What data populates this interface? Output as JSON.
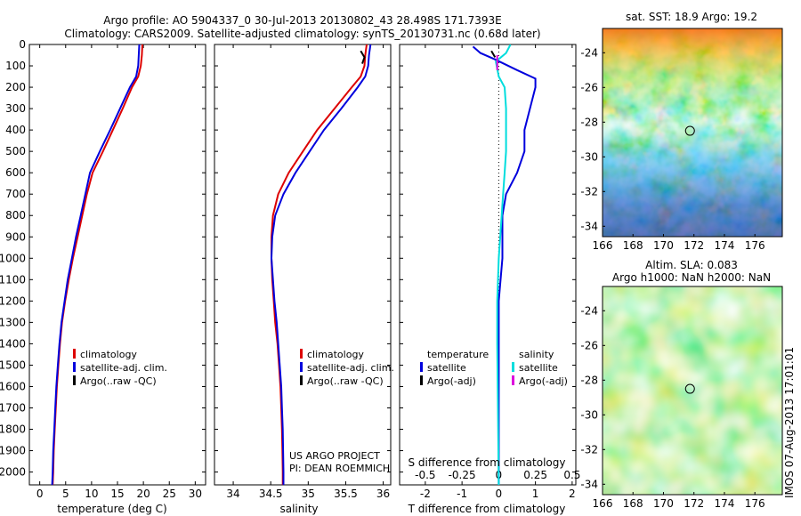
{
  "header": {
    "line1": "Argo profile: AO 5904337_0 30-Jul-2013 20130802_43 28.498S 171.7393E",
    "line2": "Climatology: CARS2009. Satellite-adjusted climatology: synTS_20130731.nc (0.68d later)"
  },
  "credits": {
    "project": "US ARGO PROJECT",
    "pi": "PI: DEAN ROEMMICH",
    "imos": "IMOS 07-Aug-2013 17:01:01"
  },
  "chart_data": [
    {
      "type": "line",
      "name": "temperature-profile",
      "xlabel": "temperature (deg C)",
      "ylabel": "",
      "xlim": [
        -2,
        32
      ],
      "ylim": [
        2060,
        0
      ],
      "xticks": [
        0,
        5,
        10,
        15,
        20,
        25,
        30
      ],
      "yticks": [
        0,
        100,
        200,
        300,
        400,
        500,
        600,
        700,
        800,
        900,
        1000,
        1100,
        1200,
        1300,
        1400,
        1500,
        1600,
        1700,
        1800,
        1900,
        2000
      ],
      "legend": [
        "climatology",
        "satellite-adj. clim.",
        "Argo(..raw -QC)"
      ],
      "series": [
        {
          "name": "climatology",
          "color": "#dd0000",
          "points": [
            [
              19.8,
              0
            ],
            [
              19.7,
              50
            ],
            [
              19.5,
              100
            ],
            [
              19.0,
              150
            ],
            [
              17.8,
              200
            ],
            [
              16.0,
              300
            ],
            [
              14.1,
              400
            ],
            [
              12.2,
              500
            ],
            [
              10.2,
              600
            ],
            [
              9.1,
              700
            ],
            [
              8.2,
              800
            ],
            [
              7.3,
              900
            ],
            [
              6.4,
              1000
            ],
            [
              5.6,
              1100
            ],
            [
              4.9,
              1200
            ],
            [
              4.3,
              1300
            ],
            [
              3.9,
              1400
            ],
            [
              3.6,
              1500
            ],
            [
              3.3,
              1600
            ],
            [
              3.1,
              1700
            ],
            [
              2.9,
              1800
            ],
            [
              2.7,
              1900
            ],
            [
              2.6,
              2000
            ],
            [
              2.5,
              2060
            ]
          ]
        },
        {
          "name": "satellite-adj. clim.",
          "color": "#0000dd",
          "points": [
            [
              19.2,
              0
            ],
            [
              19.1,
              50
            ],
            [
              19.0,
              100
            ],
            [
              18.6,
              150
            ],
            [
              17.4,
              200
            ],
            [
              15.5,
              300
            ],
            [
              13.6,
              400
            ],
            [
              11.6,
              500
            ],
            [
              9.7,
              600
            ],
            [
              8.8,
              700
            ],
            [
              7.9,
              800
            ],
            [
              7.0,
              900
            ],
            [
              6.2,
              1000
            ],
            [
              5.4,
              1100
            ],
            [
              4.8,
              1200
            ],
            [
              4.2,
              1300
            ],
            [
              3.8,
              1400
            ],
            [
              3.5,
              1500
            ],
            [
              3.2,
              1600
            ],
            [
              3.0,
              1700
            ],
            [
              2.8,
              1800
            ],
            [
              2.6,
              1900
            ],
            [
              2.5,
              2000
            ],
            [
              2.4,
              2060
            ]
          ]
        }
      ]
    },
    {
      "type": "line",
      "name": "salinity-profile",
      "xlabel": "salinity",
      "xlim": [
        33.75,
        36.1
      ],
      "ylim": [
        2060,
        0
      ],
      "xticks": [
        34,
        34.5,
        35,
        35.5,
        36
      ],
      "legend": [
        "climatology",
        "satellite-adj. clim.",
        "Argo(..raw -QC)"
      ],
      "series": [
        {
          "name": "climatology",
          "color": "#dd0000",
          "points": [
            [
              35.78,
              0
            ],
            [
              35.76,
              50
            ],
            [
              35.75,
              100
            ],
            [
              35.7,
              150
            ],
            [
              35.58,
              200
            ],
            [
              35.35,
              300
            ],
            [
              35.12,
              400
            ],
            [
              34.93,
              500
            ],
            [
              34.74,
              600
            ],
            [
              34.6,
              700
            ],
            [
              34.53,
              800
            ],
            [
              34.51,
              900
            ],
            [
              34.51,
              1000
            ],
            [
              34.52,
              1100
            ],
            [
              34.54,
              1200
            ],
            [
              34.56,
              1300
            ],
            [
              34.59,
              1400
            ],
            [
              34.61,
              1500
            ],
            [
              34.63,
              1600
            ],
            [
              34.64,
              1700
            ],
            [
              34.65,
              1800
            ],
            [
              34.655,
              1900
            ],
            [
              34.66,
              2000
            ],
            [
              34.66,
              2060
            ]
          ]
        },
        {
          "name": "satellite-adj. clim.",
          "color": "#0000dd",
          "points": [
            [
              35.83,
              0
            ],
            [
              35.81,
              50
            ],
            [
              35.8,
              100
            ],
            [
              35.76,
              150
            ],
            [
              35.66,
              200
            ],
            [
              35.44,
              300
            ],
            [
              35.21,
              400
            ],
            [
              35.02,
              500
            ],
            [
              34.83,
              600
            ],
            [
              34.67,
              700
            ],
            [
              34.56,
              800
            ],
            [
              34.52,
              900
            ],
            [
              34.51,
              1000
            ],
            [
              34.53,
              1100
            ],
            [
              34.55,
              1200
            ],
            [
              34.58,
              1300
            ],
            [
              34.6,
              1400
            ],
            [
              34.62,
              1500
            ],
            [
              34.64,
              1600
            ],
            [
              34.65,
              1700
            ],
            [
              34.66,
              1800
            ],
            [
              34.665,
              1900
            ],
            [
              34.67,
              2000
            ],
            [
              34.67,
              2060
            ]
          ]
        },
        {
          "name": "Argo(..raw -QC)",
          "color": "#000000",
          "points": [
            [
              35.7,
              30
            ],
            [
              35.75,
              60
            ],
            [
              35.72,
              90
            ]
          ]
        }
      ]
    },
    {
      "type": "line",
      "name": "difference-profile",
      "xlabel": "T difference from climatology",
      "xlabel2": "S difference from climatology",
      "xlim": [
        -2.7,
        2.1
      ],
      "xlim2": [
        -0.675,
        0.525
      ],
      "ylim": [
        2060,
        0
      ],
      "xticks": [
        -2,
        -1,
        0,
        1,
        2
      ],
      "xticklabels": [
        "-2",
        "-1",
        "0",
        "1",
        "2"
      ],
      "xticks2": [
        -0.5,
        -0.25,
        0,
        0.25,
        0.5
      ],
      "xticklabels2": [
        "-0.5",
        "-0.25",
        "0",
        "0.25",
        "0.5"
      ],
      "legend_titles": [
        "temperature",
        "salinity"
      ],
      "legend_left": [
        "satellite",
        "Argo(-adj)"
      ],
      "legend_right": [
        "satellite",
        "Argo(-adj)"
      ],
      "series": [
        {
          "name": "temperature satellite",
          "color": "#0000dd",
          "axis": "T",
          "points": [
            [
              -0.7,
              10
            ],
            [
              -0.5,
              40
            ],
            [
              -0.1,
              70
            ],
            [
              0.5,
              120
            ],
            [
              1.0,
              160
            ],
            [
              1.0,
              200
            ],
            [
              0.7,
              400
            ],
            [
              0.7,
              500
            ],
            [
              0.5,
              600
            ],
            [
              0.2,
              700
            ],
            [
              0.1,
              800
            ],
            [
              0.1,
              1000
            ],
            [
              0.0,
              1200
            ],
            [
              0.0,
              1400
            ],
            [
              0.0,
              2060
            ]
          ]
        },
        {
          "name": "salinity satellite",
          "color": "#00dddd",
          "axis": "S",
          "points": [
            [
              0.08,
              0
            ],
            [
              0.05,
              40
            ],
            [
              -0.02,
              80
            ],
            [
              0.0,
              150
            ],
            [
              0.04,
              200
            ],
            [
              0.05,
              300
            ],
            [
              0.05,
              400
            ],
            [
              0.05,
              500
            ],
            [
              0.04,
              600
            ],
            [
              0.03,
              700
            ],
            [
              0.02,
              800
            ],
            [
              0.0,
              1000
            ],
            [
              -0.01,
              1200
            ],
            [
              -0.01,
              1400
            ],
            [
              0.0,
              2060
            ]
          ]
        },
        {
          "name": "temperature Argo(-adj)",
          "color": "#000000",
          "axis": "T",
          "points": [
            [
              -0.2,
              30
            ],
            [
              -0.1,
              60
            ]
          ]
        },
        {
          "name": "salinity Argo(-adj)",
          "color": "#dd00dd",
          "axis": "S",
          "points": [
            [
              -0.01,
              50
            ],
            [
              -0.01,
              120
            ]
          ]
        }
      ]
    },
    {
      "type": "heatmap",
      "name": "sst-map",
      "title": "sat. SST: 18.9 Argo: 19.2",
      "xlim": [
        166,
        177.8
      ],
      "ylim": [
        -34.6,
        -22.6
      ],
      "xticks": [
        166,
        168,
        170,
        172,
        174,
        176
      ],
      "yticks": [
        -24,
        -26,
        -28,
        -30,
        -32,
        -34
      ],
      "marker": [
        171.74,
        -28.5
      ]
    },
    {
      "type": "heatmap",
      "name": "sla-map",
      "title": "Altim. SLA: 0.083",
      "subtitle": "Argo h1000: NaN h2000: NaN",
      "xlim": [
        166,
        177.8
      ],
      "ylim": [
        -34.6,
        -22.6
      ],
      "xticks": [
        166,
        168,
        170,
        172,
        174,
        176
      ],
      "yticks": [
        -24,
        -26,
        -28,
        -30,
        -32,
        -34
      ],
      "marker": [
        171.74,
        -28.5
      ]
    }
  ]
}
